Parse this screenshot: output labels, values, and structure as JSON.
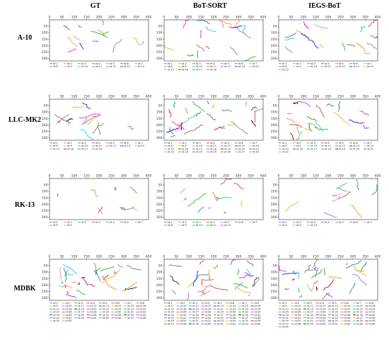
{
  "columns": [
    "GT",
    "BoT-SORT",
    "IEGS-BoT"
  ],
  "rows": [
    "A-10",
    "LLC-MK2",
    "RK-13",
    "MDBK"
  ],
  "chart_data": {
    "type": "line",
    "description_kind": "cell trajectory plots",
    "x_ticks": [
      0,
      50,
      100,
      150,
      200,
      250,
      300,
      350,
      400
    ],
    "y_ticks": [
      50,
      100,
      150,
      200,
      250,
      300
    ],
    "xlim": [
      0,
      400
    ],
    "ylim": [
      320,
      0
    ],
    "grid": false,
    "legend_placement": "bottom-below",
    "panels": [
      {
        "row": "A-10",
        "col": "GT",
        "legend": [
          "id:1",
          "id:2",
          "id:3",
          "id:4",
          "id:5",
          "id:6",
          "id:7",
          "id:8",
          "id:9",
          "id:10",
          "id:11",
          "id:12",
          "id:13",
          "id:14"
        ]
      },
      {
        "row": "A-10",
        "col": "BoT-SORT",
        "legend": [
          "id:1",
          "id:2",
          "id:3",
          "id:4",
          "id:5",
          "id:6",
          "id:7",
          "id:8",
          "id:9",
          "id:10",
          "id:11",
          "id:12",
          "id:13",
          "id:14",
          "id:15",
          "id:16",
          "id:17",
          "id:18"
        ]
      },
      {
        "row": "A-10",
        "col": "IEGS-BoT",
        "legend": [
          "id:1",
          "id:2",
          "id:3",
          "id:4",
          "id:5",
          "id:6",
          "id:7",
          "id:8",
          "id:9",
          "id:10",
          "id:11",
          "id:12",
          "id:13",
          "id:14",
          "id:15"
        ]
      },
      {
        "row": "LLC-MK2",
        "col": "GT",
        "legend": [
          "id:1",
          "id:2",
          "id:3",
          "id:4",
          "id:5",
          "id:6",
          "id:7",
          "id:8",
          "id:9",
          "id:10",
          "id:11",
          "id:12",
          "id:13",
          "id:14",
          "id:15",
          "id:16",
          "id:17",
          "id:18"
        ]
      },
      {
        "row": "LLC-MK2",
        "col": "BoT-SORT",
        "legend": [
          "id:1",
          "id:2",
          "id:3",
          "id:4",
          "id:5",
          "id:6",
          "id:7",
          "id:8",
          "id:9",
          "id:10",
          "id:11",
          "id:12",
          "id:13",
          "id:14",
          "id:15",
          "id:16",
          "id:17",
          "id:18",
          "id:19",
          "id:20",
          "id:21",
          "id:22",
          "id:23",
          "id:24",
          "id:25",
          "id:26",
          "id:27",
          "id:28"
        ]
      },
      {
        "row": "LLC-MK2",
        "col": "IEGS-BoT",
        "legend": [
          "id:1",
          "id:2",
          "id:3",
          "id:4",
          "id:5",
          "id:6",
          "id:7",
          "id:8",
          "id:9",
          "id:10",
          "id:11",
          "id:12",
          "id:13",
          "id:14",
          "id:15",
          "id:16",
          "id:17",
          "id:18",
          "id:19",
          "id:20",
          "id:21",
          "id:22"
        ]
      },
      {
        "row": "RK-13",
        "col": "GT",
        "legend": [
          "id:1",
          "id:2",
          "id:3",
          "id:4",
          "id:5",
          "id:6",
          "id:7",
          "id:8",
          "id:9"
        ]
      },
      {
        "row": "RK-13",
        "col": "BoT-SORT",
        "legend": [
          "id:1",
          "id:2",
          "id:3",
          "id:4",
          "id:5",
          "id:6",
          "id:7",
          "id:8",
          "id:9",
          "id:10",
          "id:11",
          "id:12"
        ]
      },
      {
        "row": "RK-13",
        "col": "IEGS-BoT",
        "legend": [
          "id:1",
          "id:2",
          "id:3",
          "id:4",
          "id:5",
          "id:6",
          "id:7",
          "id:8",
          "id:9",
          "id:10"
        ]
      },
      {
        "row": "MDBK",
        "col": "GT",
        "legend": [
          "id:1",
          "id:2",
          "id:3",
          "id:4",
          "id:5",
          "id:6",
          "id:7",
          "id:8",
          "id:9",
          "id:10",
          "id:11",
          "id:12",
          "id:13",
          "id:14",
          "id:15",
          "id:16",
          "id:17",
          "id:18",
          "id:19",
          "id:20",
          "id:21",
          "id:22",
          "id:23",
          "id:24",
          "id:25",
          "id:26",
          "id:27",
          "id:28",
          "id:29",
          "id:30",
          "id:31",
          "id:32",
          "id:33",
          "id:34",
          "id:35",
          "id:36",
          "id:37",
          "id:38",
          "id:39",
          "id:40",
          "id:41",
          "id:42",
          "id:43",
          "id:44",
          "id:45",
          "id:46",
          "id:47",
          "id:48",
          "id:49",
          "id:50"
        ]
      },
      {
        "row": "MDBK",
        "col": "BoT-SORT",
        "legend": [
          "id:1",
          "id:2",
          "id:3",
          "id:4",
          "id:5",
          "id:6",
          "id:7",
          "id:8",
          "id:9",
          "id:10",
          "id:11",
          "id:12",
          "id:13",
          "id:14",
          "id:15",
          "id:16",
          "id:17",
          "id:18",
          "id:19",
          "id:20",
          "id:21",
          "id:22",
          "id:23",
          "id:24",
          "id:25",
          "id:26",
          "id:27",
          "id:28",
          "id:29",
          "id:30",
          "id:31",
          "id:32",
          "id:33",
          "id:34",
          "id:35",
          "id:36",
          "id:37",
          "id:38",
          "id:39",
          "id:40",
          "id:41",
          "id:42",
          "id:43",
          "id:44",
          "id:45",
          "id:46",
          "id:47",
          "id:48",
          "id:49",
          "id:50",
          "id:51",
          "id:52",
          "id:53",
          "id:54",
          "id:55",
          "id:56",
          "id:57",
          "id:58",
          "id:59",
          "id:60",
          "id:61",
          "id:62",
          "id:63",
          "id:64"
        ]
      },
      {
        "row": "MDBK",
        "col": "IEGS-BoT",
        "legend": [
          "id:1",
          "id:2",
          "id:3",
          "id:4",
          "id:5",
          "id:6",
          "id:7",
          "id:8",
          "id:9",
          "id:10",
          "id:11",
          "id:12",
          "id:13",
          "id:14",
          "id:15",
          "id:16",
          "id:17",
          "id:18",
          "id:19",
          "id:20",
          "id:21",
          "id:22",
          "id:23",
          "id:24",
          "id:25",
          "id:26",
          "id:27",
          "id:28",
          "id:29",
          "id:30",
          "id:31",
          "id:32",
          "id:33",
          "id:34",
          "id:35",
          "id:36",
          "id:37",
          "id:38",
          "id:39",
          "id:40",
          "id:41",
          "id:42",
          "id:43",
          "id:44",
          "id:45",
          "id:46",
          "id:47",
          "id:48",
          "id:49",
          "id:50",
          "id:51",
          "id:52",
          "id:53",
          "id:54",
          "id:55",
          "id:56",
          "id:57",
          "id:58",
          "id:59",
          "id:60",
          "id:61",
          "id:62",
          "id:63",
          "id:64",
          "id:65"
        ]
      }
    ],
    "palette": [
      "#1f77b4",
      "#ff7f0e",
      "#2ca02c",
      "#d62728",
      "#9467bd",
      "#8c564b",
      "#e377c2",
      "#7f7f7f",
      "#bcbd22",
      "#17becf",
      "#00c000",
      "#ff00ff",
      "#0000ff",
      "#ffa500",
      "#00ced1",
      "#8b0000",
      "#228b22",
      "#ff1493",
      "#000000",
      "#8a2be2"
    ]
  }
}
